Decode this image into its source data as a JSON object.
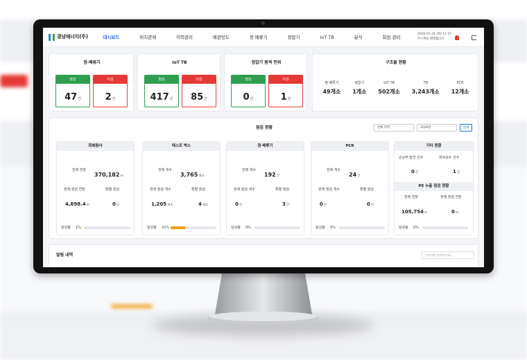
{
  "nav": {
    "logo": "경남에너지(주)",
    "items": [
      "대시보드",
      "위치관제",
      "이력관리",
      "배관망도",
      "정·배류기",
      "정압기",
      "IoT TB",
      "분석",
      "회원 관리"
    ],
    "datetime": "2026.02.24 (화) 11:37",
    "welcome": "무스파님 환영합니다"
  },
  "status_cards": [
    {
      "title": "정·배류기",
      "normal_label": "정상",
      "normal": "47",
      "abnormal_label": "이상",
      "abnormal": "2",
      "unit": "건"
    },
    {
      "title": "IoT TB",
      "normal_label": "정상",
      "normal": "417",
      "abnormal_label": "이상",
      "abnormal": "85",
      "unit": "건"
    },
    {
      "title": "정압기 원격 전위",
      "normal_label": "정상",
      "normal": "0",
      "abnormal_label": "이상",
      "abnormal": "1",
      "unit": "건"
    }
  ],
  "structures": {
    "title": "구조물 현황",
    "items": [
      {
        "label": "정·배류기",
        "value": "49개소"
      },
      {
        "label": "정압기",
        "value": "1개소"
      },
      {
        "label": "IoT TB",
        "value": "502개소"
      },
      {
        "label": "TB",
        "value": "3,243개소"
      },
      {
        "label": "PCR",
        "value": "12개소"
      }
    ]
  },
  "inspection": {
    "title": "점검 현황",
    "region": "전체 지역",
    "year": "2026년",
    "search": "검색",
    "cards": [
      {
        "title": "회복탐사",
        "total_label": "전체 연장",
        "total": "370,182",
        "total_unit": "m",
        "current_label": "현재 점검 연장",
        "current": "4,698.4",
        "current_unit": "m",
        "special_label": "특별 점검",
        "special": "0",
        "special_unit": "m",
        "rate_label": "달성율",
        "rate": "1%"
      },
      {
        "title": "테스트 박스",
        "total_label": "전체 개수",
        "total": "3,765",
        "total_unit": "개소",
        "current_label": "현재 점검 개수",
        "current": "1,205",
        "current_unit": "개소",
        "special_label": "특별 점검",
        "special": "4",
        "special_unit": "개소",
        "rate_label": "달성율",
        "rate": "32%"
      },
      {
        "title": "정·배류기",
        "total_label": "전체 개수",
        "total": "192",
        "total_unit": "건",
        "current_label": "현재 점검 개수",
        "current": "0",
        "current_unit": "건",
        "special_label": "특별 점검",
        "special": "3",
        "special_unit": "건",
        "rate_label": "달성율",
        "rate": "0%"
      },
      {
        "title": "PCR",
        "total_label": "전체 개수",
        "total": "24",
        "total_unit": "건",
        "current_label": "현재 점검 개수",
        "current": "0",
        "current_unit": "건",
        "special_label": "특별 점검",
        "special": "0",
        "special_unit": "건",
        "rate_label": "달성율",
        "rate": "0%"
      }
    ],
    "other": {
      "title": "기타 현황",
      "damage_label": "손상부 발견 건수",
      "damage": "0",
      "damage_unit": "건",
      "repair_label": "피복보수 건수",
      "repair": "1",
      "repair_unit": "건",
      "pe_title": "PE 누출 점검 현황",
      "pe_total_label": "전체 연장",
      "pe_total": "105,754",
      "pe_total_unit": "m",
      "pe_current_label": "현재 점검 연장",
      "pe_current": "0",
      "pe_current_unit": "m",
      "rate_label": "달성율",
      "rate": "0%"
    }
  },
  "alerts": {
    "title": "알림 내역",
    "search_placeholder": "검색어를 입력해주세요"
  }
}
